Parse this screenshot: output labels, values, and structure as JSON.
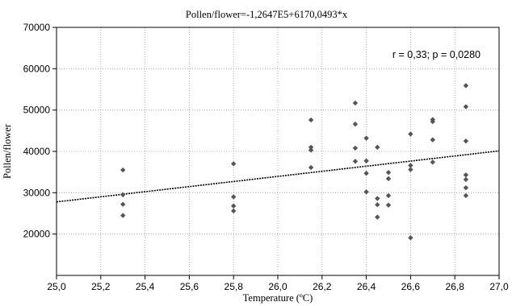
{
  "chart_data": {
    "type": "scatter",
    "title": "Pollen/flower=-1,2647E5+6170,0493*x",
    "xlabel": "Temperature (ºC)",
    "ylabel": "Pollen/flower",
    "annotation": "r = 0,33; p = 0,0280",
    "xlim": [
      25.0,
      27.0
    ],
    "ylim": [
      10000,
      70000
    ],
    "x_ticks": [
      25.0,
      25.2,
      25.4,
      25.6,
      25.8,
      26.0,
      26.2,
      26.4,
      26.6,
      26.8,
      27.0
    ],
    "x_tick_labels": [
      "25,0",
      "25,2",
      "25,4",
      "25,6",
      "25,8",
      "26,0",
      "26,2",
      "26,4",
      "26,6",
      "26,8",
      "27,0"
    ],
    "y_ticks": [
      20000,
      30000,
      40000,
      50000,
      60000,
      70000
    ],
    "y_tick_labels": [
      "20000",
      "30000",
      "40000",
      "50000",
      "60000",
      "70000"
    ],
    "grid": true,
    "marker_color": "#555555",
    "line_color": "#000000",
    "regression": {
      "intercept": -126470,
      "slope": 6170.0493
    },
    "points": [
      {
        "x": 25.3,
        "y": 35500
      },
      {
        "x": 25.3,
        "y": 29500
      },
      {
        "x": 25.3,
        "y": 27200
      },
      {
        "x": 25.3,
        "y": 24500
      },
      {
        "x": 25.8,
        "y": 37000
      },
      {
        "x": 25.8,
        "y": 29000
      },
      {
        "x": 25.8,
        "y": 26800
      },
      {
        "x": 25.8,
        "y": 25600
      },
      {
        "x": 26.15,
        "y": 47600
      },
      {
        "x": 26.15,
        "y": 41000
      },
      {
        "x": 26.15,
        "y": 40300
      },
      {
        "x": 26.15,
        "y": 36100
      },
      {
        "x": 26.35,
        "y": 51700
      },
      {
        "x": 26.35,
        "y": 46600
      },
      {
        "x": 26.35,
        "y": 40800
      },
      {
        "x": 26.35,
        "y": 37600
      },
      {
        "x": 26.4,
        "y": 43200
      },
      {
        "x": 26.4,
        "y": 37700
      },
      {
        "x": 26.4,
        "y": 34700
      },
      {
        "x": 26.4,
        "y": 30200
      },
      {
        "x": 26.45,
        "y": 41000
      },
      {
        "x": 26.45,
        "y": 28600
      },
      {
        "x": 26.45,
        "y": 27100
      },
      {
        "x": 26.45,
        "y": 24100
      },
      {
        "x": 26.5,
        "y": 34900
      },
      {
        "x": 26.5,
        "y": 33400
      },
      {
        "x": 26.5,
        "y": 29300
      },
      {
        "x": 26.5,
        "y": 27000
      },
      {
        "x": 26.6,
        "y": 44200
      },
      {
        "x": 26.6,
        "y": 36600
      },
      {
        "x": 26.6,
        "y": 35600
      },
      {
        "x": 26.6,
        "y": 19100
      },
      {
        "x": 26.7,
        "y": 47700
      },
      {
        "x": 26.7,
        "y": 47200
      },
      {
        "x": 26.7,
        "y": 42800
      },
      {
        "x": 26.7,
        "y": 37400
      },
      {
        "x": 26.85,
        "y": 55900
      },
      {
        "x": 26.85,
        "y": 50800
      },
      {
        "x": 26.85,
        "y": 42500
      },
      {
        "x": 26.85,
        "y": 34300
      },
      {
        "x": 26.85,
        "y": 33200
      },
      {
        "x": 26.85,
        "y": 31200
      },
      {
        "x": 26.85,
        "y": 29300
      }
    ]
  }
}
